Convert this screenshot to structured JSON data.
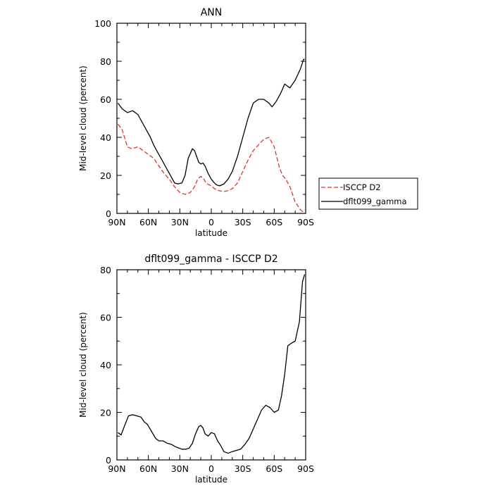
{
  "chart_data": [
    {
      "type": "line",
      "title": "ANN",
      "xlabel": "latitude",
      "ylabel": "Mid-level cloud (percent)",
      "xlim": [
        90,
        -90
      ],
      "ylim": [
        0,
        100
      ],
      "x_tick_labels": [
        "90N",
        "60N",
        "30N",
        "0",
        "30S",
        "60S",
        "90S"
      ],
      "y_tick_labels": [
        "0",
        "20",
        "40",
        "60",
        "80",
        "100"
      ],
      "legend": "right",
      "series": [
        {
          "name": "ISCCP D2",
          "color": "#e8302a",
          "dash": "dashed",
          "x": [
            89,
            85,
            80,
            76,
            70,
            65,
            60,
            55,
            50,
            45,
            40,
            35,
            30,
            25,
            20,
            16,
            13,
            10,
            7,
            5,
            2,
            0,
            -3,
            -7,
            -12,
            -16,
            -20,
            -25,
            -30,
            -35,
            -40,
            -45,
            -50,
            -55,
            -60,
            -65,
            -68,
            -71,
            -75,
            -80,
            -85,
            -87,
            -89
          ],
          "y": [
            47,
            44,
            35,
            34,
            35,
            33,
            31,
            29,
            25,
            21,
            18,
            14,
            11,
            10,
            11,
            14,
            18,
            19.5,
            18,
            16,
            15,
            14.5,
            13,
            12,
            11.5,
            12,
            13,
            16,
            22,
            28,
            33,
            36,
            39,
            40,
            35,
            24,
            20,
            18,
            14,
            6,
            2,
            1,
            1
          ]
        },
        {
          "name": "dflt099_gamma",
          "color": "#000000",
          "dash": "solid",
          "x": [
            89,
            85,
            80,
            75,
            70,
            66,
            62,
            58,
            55,
            50,
            46,
            42,
            38,
            35,
            32,
            28,
            25,
            22,
            18,
            16,
            14,
            12,
            10,
            8,
            6,
            3,
            0,
            -3,
            -5,
            -8,
            -12,
            -16,
            -20,
            -25,
            -30,
            -35,
            -40,
            -45,
            -50,
            -55,
            -58,
            -62,
            -66,
            -70,
            -75,
            -80,
            -85,
            -88,
            -89
          ],
          "y": [
            58,
            55,
            53,
            54,
            52,
            48,
            44,
            40,
            36,
            31,
            27,
            23,
            19,
            16,
            15.5,
            16,
            20,
            29,
            34,
            33,
            30,
            27,
            26,
            26.5,
            25,
            21,
            18,
            16,
            15,
            14.5,
            15.5,
            18,
            22,
            30,
            40,
            50,
            58,
            60,
            60,
            58,
            56,
            59,
            63,
            68,
            66,
            70,
            76,
            81,
            81
          ]
        }
      ]
    },
    {
      "type": "line",
      "title": "dflt099_gamma - ISCCP D2",
      "xlabel": "latitude",
      "ylabel": "Mid-level cloud (percent)",
      "xlim": [
        90,
        -90
      ],
      "ylim": [
        0,
        80
      ],
      "x_tick_labels": [
        "90N",
        "60N",
        "30N",
        "0",
        "30S",
        "60S",
        "90S"
      ],
      "y_tick_labels": [
        "0",
        "20",
        "40",
        "60",
        "80"
      ],
      "series": [
        {
          "color": "#000000",
          "dash": "solid",
          "x": [
            89,
            86,
            83,
            79,
            75,
            71,
            67,
            64,
            61,
            57,
            53,
            50,
            46,
            42,
            38,
            34,
            31,
            28,
            24,
            21,
            18,
            15,
            12,
            10,
            8,
            6,
            3,
            0,
            -3,
            -6,
            -9,
            -12,
            -16,
            -20,
            -24,
            -28,
            -32,
            -36,
            -40,
            -44,
            -48,
            -52,
            -56,
            -60,
            -64,
            -67,
            -70,
            -73,
            -76,
            -80,
            -84,
            -87,
            -89
          ],
          "y": [
            11.5,
            10.5,
            14,
            18.5,
            19,
            18.5,
            18,
            16,
            15,
            12,
            9,
            8,
            8,
            7,
            6.5,
            5.5,
            5,
            4.5,
            4.5,
            5,
            7,
            11,
            14,
            14.5,
            13.5,
            11,
            10,
            11.5,
            11,
            8,
            6,
            3.5,
            2.8,
            3.5,
            4,
            4.5,
            6.5,
            9,
            13,
            17,
            21,
            23,
            22,
            20,
            21,
            27,
            36,
            48,
            49,
            50,
            58,
            75,
            78
          ]
        }
      ]
    }
  ]
}
